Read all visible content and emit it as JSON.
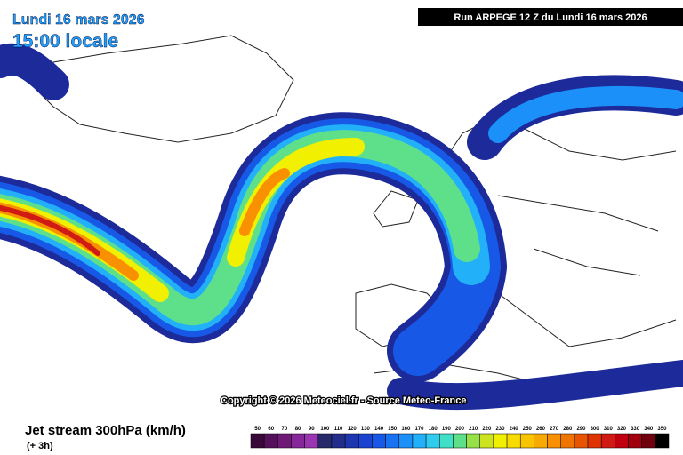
{
  "header": {
    "date": "Lundi 16 mars 2026",
    "time": "15:00 locale",
    "run": "Run ARPEGE 12 Z du Lundi 16 mars 2026"
  },
  "copyright": "Copyright © 2026 Meteociel.fr - Source Meteo-France",
  "footer": {
    "title": "Jet stream 300hPa (km/h)",
    "step": "(+ 3h)"
  },
  "legend": {
    "labels": [
      50,
      60,
      70,
      80,
      90,
      100,
      110,
      120,
      130,
      140,
      150,
      160,
      170,
      180,
      190,
      200,
      210,
      220,
      230,
      240,
      250,
      260,
      270,
      280,
      290,
      300,
      310,
      320,
      330,
      340,
      350
    ],
    "colors": [
      "#3a0838",
      "#55105a",
      "#701a78",
      "#86289a",
      "#9a36b4",
      "#262a6a",
      "#232e8c",
      "#1e36b0",
      "#1a44d0",
      "#1858e6",
      "#1872f2",
      "#1a90f8",
      "#22b0f8",
      "#30ccf0",
      "#40e0c8",
      "#5ee08a",
      "#98e048",
      "#cce420",
      "#f0f000",
      "#f8dc00",
      "#f8c400",
      "#f8aa00",
      "#f89000",
      "#f07400",
      "#e85400",
      "#e03400",
      "#d01a14",
      "#c0000e",
      "#a0000e",
      "#70000e",
      "#000000"
    ]
  }
}
